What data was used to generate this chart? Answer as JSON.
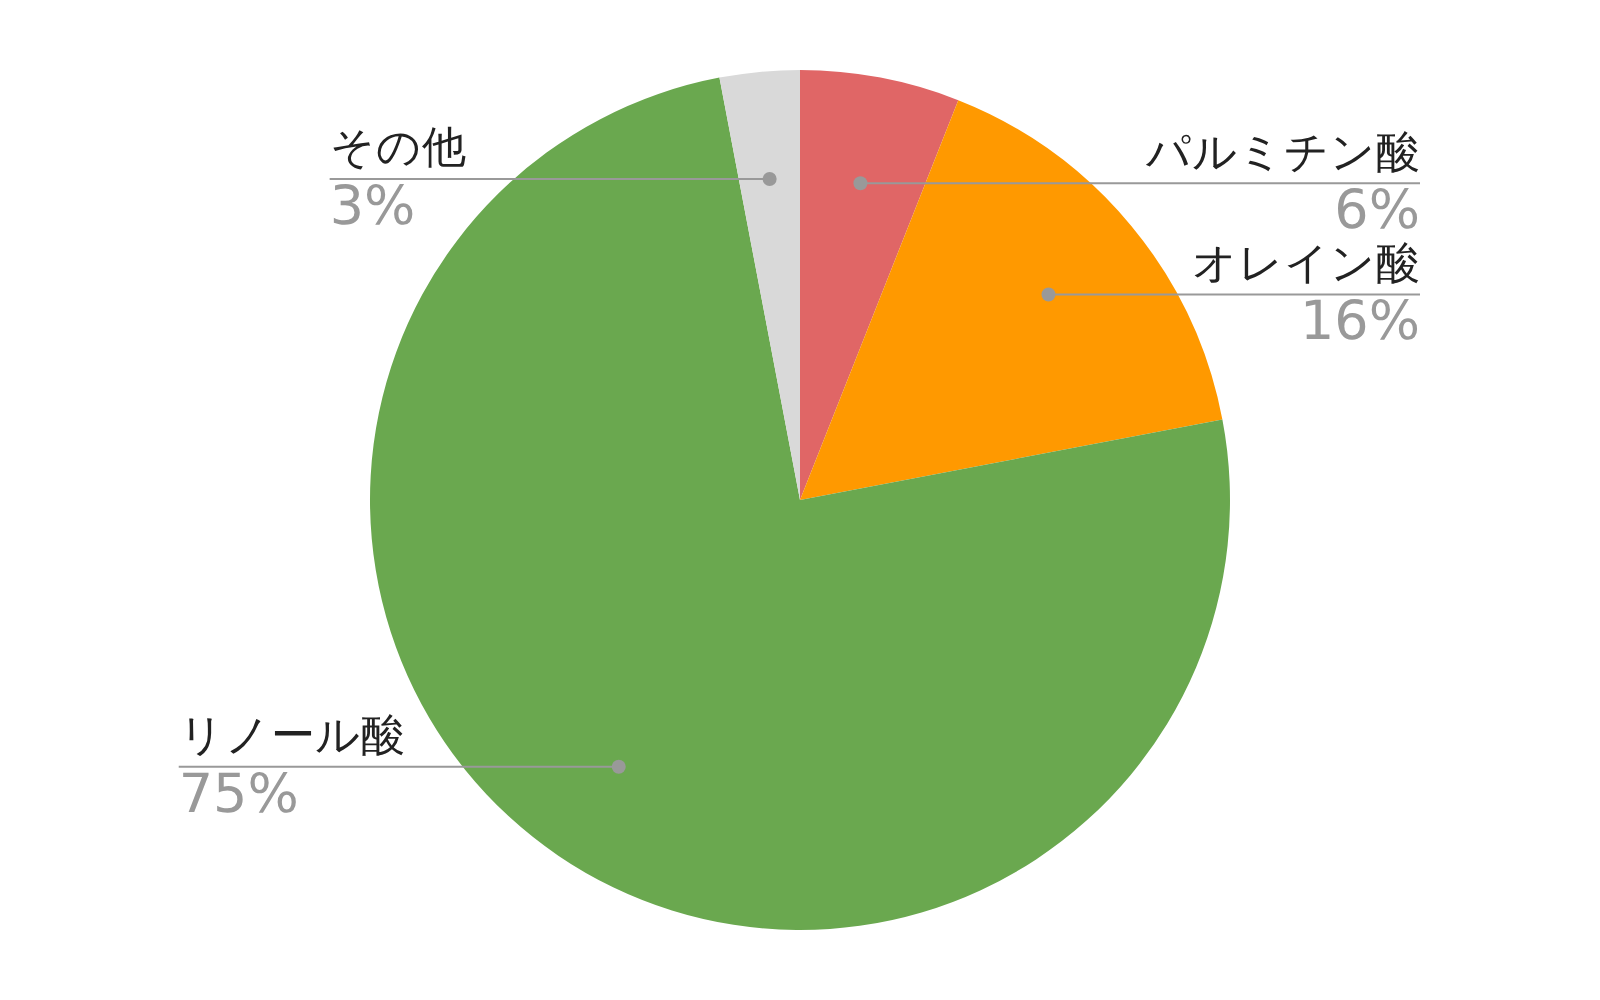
{
  "chart_data": {
    "type": "pie",
    "categories": [
      "パルミチン酸",
      "オレイン酸",
      "リノール酸",
      "その他"
    ],
    "values": [
      6,
      16,
      75,
      3
    ],
    "colors": [
      "#e06666",
      "#ff9900",
      "#6aa84f",
      "#d9d9d9"
    ],
    "value_labels": [
      "6%",
      "16%",
      "75%",
      "3%"
    ],
    "legend": false
  }
}
